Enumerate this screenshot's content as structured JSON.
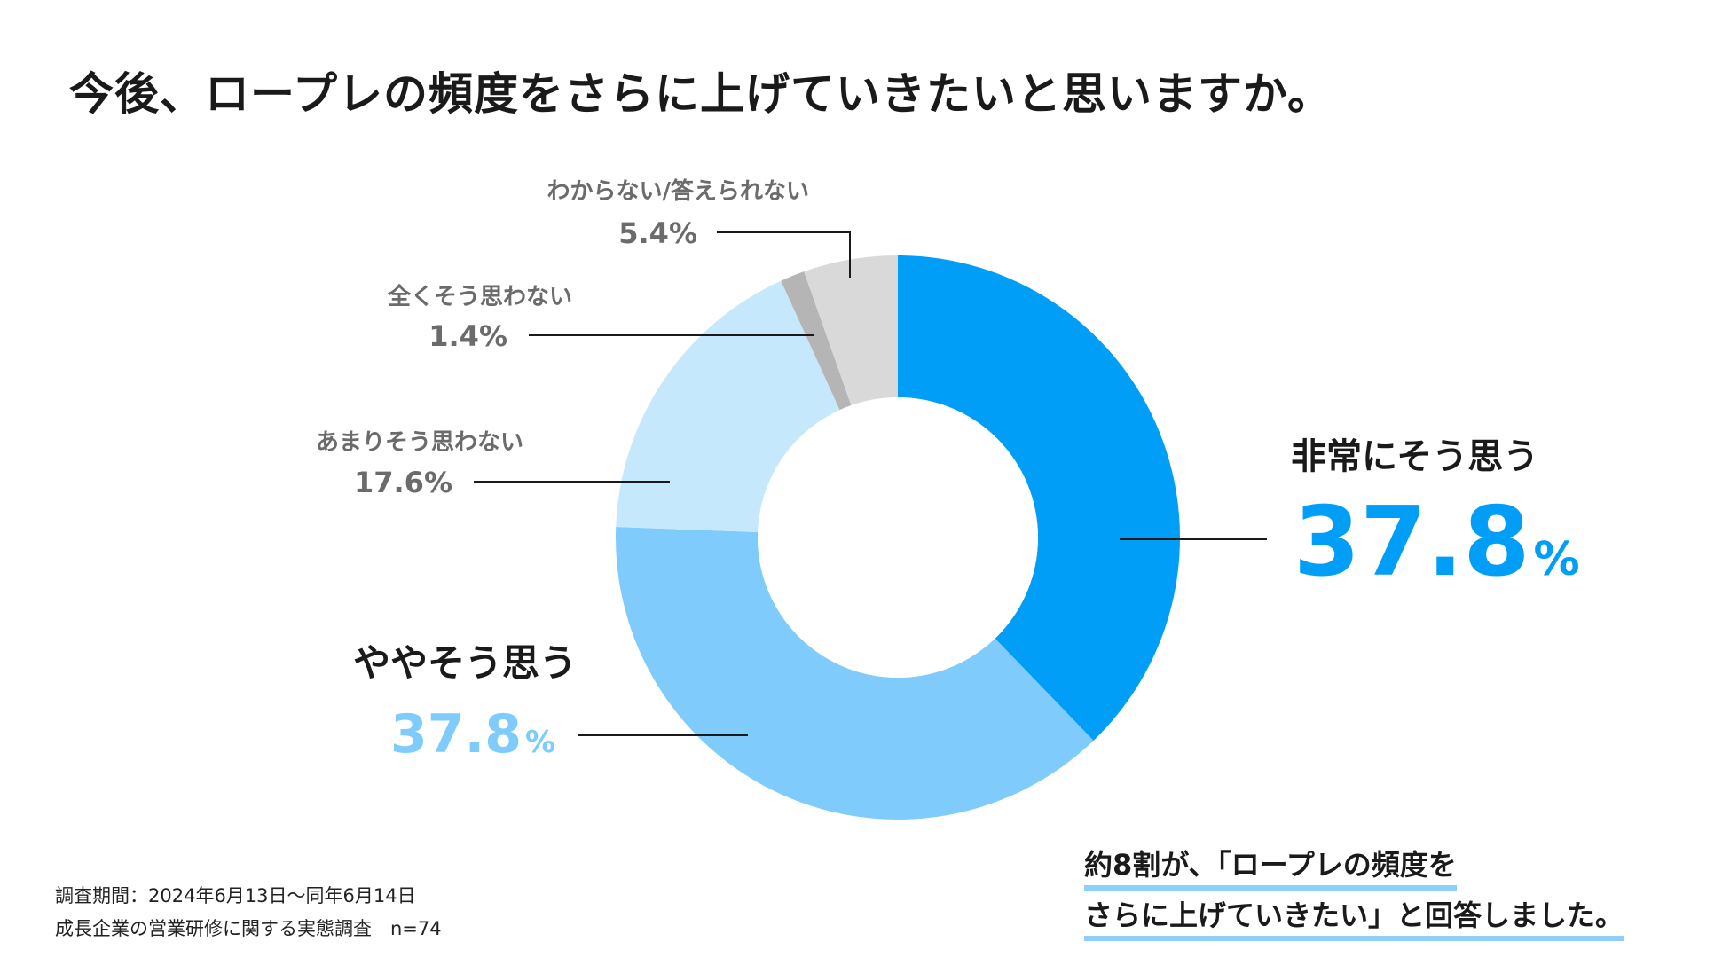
{
  "chart_data": {
    "type": "pie",
    "variant": "donut",
    "title": "今後、ロープレの頻度をさらに上げていきたいと思いますか。",
    "percent_sign": "%",
    "slices": [
      {
        "label": "非常にそう思う",
        "value": 37.8,
        "value_text": "37.8",
        "color": "#019ef7",
        "emphasis": "large-right"
      },
      {
        "label": "ややそう思う",
        "value": 37.8,
        "value_text": "37.8",
        "color": "#7fcbfb",
        "emphasis": "large-left"
      },
      {
        "label": "あまりそう思わない",
        "value": 17.6,
        "value_text": "17.6%",
        "color": "#c6e8fd",
        "emphasis": "small"
      },
      {
        "label": "全くそう思わない",
        "value": 1.4,
        "value_text": "1.4%",
        "color": "#b5b5b5",
        "emphasis": "small"
      },
      {
        "label": "わからない/答えられない",
        "value": 5.4,
        "value_text": "5.4%",
        "color": "#d9d9d9",
        "emphasis": "small"
      }
    ]
  },
  "footer": {
    "period": "調査期間：2024年6月13日〜同年6月14日",
    "survey": "成長企業の営業研修に関する実態調査｜n=74"
  },
  "callout": {
    "line1": "約8割が、「ロープレの頻度を",
    "line2": "さらに上げていきたい」と回答しました。"
  }
}
